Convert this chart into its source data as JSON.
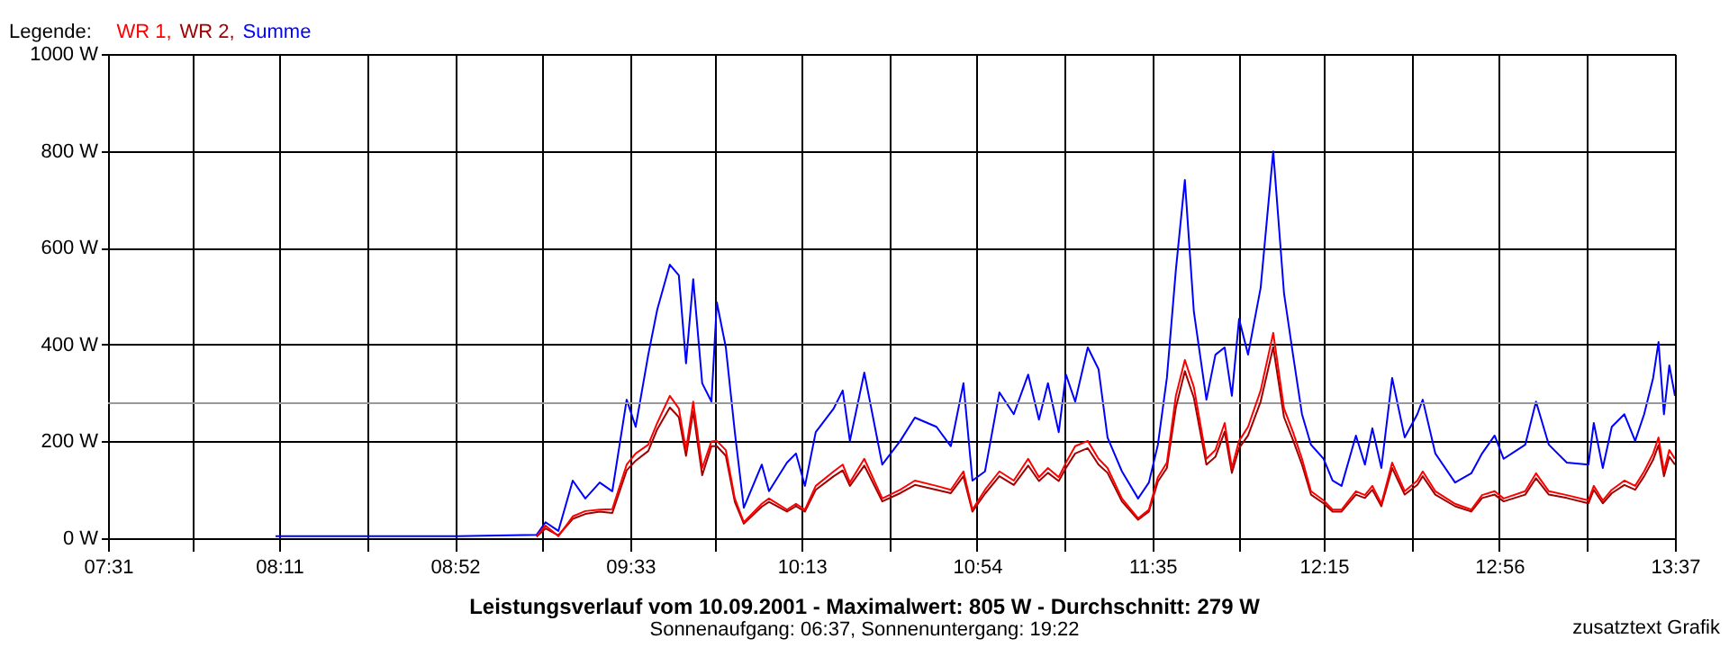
{
  "chart_data": {
    "type": "line",
    "title": "Leistungsverlauf vom 10.09.2001 - Maximalwert: 805 W - Durchschnitt: 279 W",
    "subtitle": "Sonnenaufgang: 06:37, Sonnenuntergang: 19:22",
    "legend_title": "Legende:",
    "legend": "top left",
    "grid": true,
    "marker": "none",
    "line_style": "solid",
    "annotations": [
      "zusatztext Grafik"
    ],
    "x": [
      8.169,
      8.498,
      8.849,
      9.185,
      9.22,
      9.27,
      9.326,
      9.375,
      9.431,
      9.48,
      9.536,
      9.571,
      9.62,
      9.655,
      9.704,
      9.739,
      9.767,
      9.795,
      9.83,
      9.866,
      9.887,
      9.922,
      9.957,
      9.992,
      10.062,
      10.09,
      10.16,
      10.195,
      10.23,
      10.272,
      10.342,
      10.377,
      10.405,
      10.461,
      10.531,
      10.601,
      10.658,
      10.742,
      10.798,
      10.847,
      10.882,
      10.931,
      10.987,
      11.043,
      11.099,
      11.141,
      11.176,
      11.218,
      11.246,
      11.282,
      11.331,
      11.373,
      11.408,
      11.464,
      11.527,
      11.569,
      11.604,
      11.639,
      11.674,
      11.709,
      11.744,
      11.793,
      11.828,
      11.864,
      11.892,
      11.92,
      11.955,
      12.004,
      12.053,
      12.095,
      12.13,
      12.165,
      12.2,
      12.249,
      12.284,
      12.319,
      12.375,
      12.41,
      12.439,
      12.474,
      12.516,
      12.565,
      12.614,
      12.635,
      12.684,
      12.761,
      12.824,
      12.866,
      12.915,
      12.95,
      13.034,
      13.076,
      13.126,
      13.196,
      13.28,
      13.301,
      13.336,
      13.371,
      13.42,
      13.462,
      13.497,
      13.532,
      13.553,
      13.574,
      13.595,
      13.617
    ],
    "xlim": [
      7.517,
      13.617
    ],
    "xticks": [
      {
        "value": 7.517,
        "label": "07:31"
      },
      {
        "value": 7.85,
        "label": null
      },
      {
        "value": 8.183,
        "label": "08:11"
      },
      {
        "value": 8.525,
        "label": null
      },
      {
        "value": 8.867,
        "label": "08:52"
      },
      {
        "value": 9.208,
        "label": null
      },
      {
        "value": 9.55,
        "label": "09:33"
      },
      {
        "value": 9.883,
        "label": null
      },
      {
        "value": 10.217,
        "label": "10:13"
      },
      {
        "value": 10.558,
        "label": null
      },
      {
        "value": 10.9,
        "label": "10:54"
      },
      {
        "value": 11.242,
        "label": null
      },
      {
        "value": 11.583,
        "label": "11:35"
      },
      {
        "value": 11.917,
        "label": null
      },
      {
        "value": 12.25,
        "label": "12:15"
      },
      {
        "value": 12.592,
        "label": null
      },
      {
        "value": 12.933,
        "label": "12:56"
      },
      {
        "value": 13.275,
        "label": null
      },
      {
        "value": 13.617,
        "label": "13:37"
      }
    ],
    "ylim": [
      0,
      1000
    ],
    "yticks": [
      {
        "value": 0,
        "label": "0 W"
      },
      {
        "value": 200,
        "label": "200 W"
      },
      {
        "value": 400,
        "label": "400 W"
      },
      {
        "value": 600,
        "label": "600 W"
      },
      {
        "value": 800,
        "label": "800 W"
      },
      {
        "value": 1000,
        "label": "1000 W"
      }
    ],
    "ref_lines": [
      {
        "axis": "y",
        "value": 279,
        "color": "#999999"
      }
    ],
    "series": [
      {
        "name": "WR 1,",
        "color": "#ff0000",
        "values": [
          null,
          null,
          null,
          4,
          26,
          4,
          45,
          56,
          59,
          60,
          152,
          175,
          193,
          238,
          294,
          268,
          182,
          282,
          145,
          200,
          201,
          182,
          82,
          33,
          71,
          82,
          59,
          71,
          59,
          108,
          138,
          152,
          115,
          164,
          82,
          100,
          119,
          108,
          100,
          138,
          59,
          100,
          138,
          119,
          164,
          126,
          145,
          126,
          156,
          190,
          201,
          164,
          145,
          82,
          41,
          59,
          126,
          156,
          294,
          368,
          312,
          164,
          182,
          238,
          145,
          201,
          230,
          305,
          424,
          268,
          219,
          164,
          97,
          78,
          59,
          59,
          97,
          89,
          108,
          71,
          156,
          97,
          119,
          138,
          97,
          71,
          59,
          89,
          97,
          82,
          97,
          134,
          97,
          89,
          78,
          108,
          78,
          100,
          119,
          108,
          138,
          175,
          208,
          138,
          182,
          164
        ]
      },
      {
        "name": "WR 2,",
        "color": "#a00000",
        "values": [
          null,
          null,
          null,
          3,
          20,
          6,
          40,
          50,
          55,
          52,
          140,
          160,
          180,
          225,
          270,
          250,
          170,
          262,
          130,
          190,
          190,
          170,
          75,
          30,
          65,
          75,
          55,
          66,
          55,
          100,
          128,
          140,
          108,
          150,
          76,
          93,
          110,
          100,
          93,
          128,
          55,
          92,
          128,
          110,
          150,
          118,
          135,
          118,
          145,
          175,
          186,
          152,
          135,
          76,
          38,
          55,
          117,
          145,
          270,
          345,
          290,
          152,
          168,
          220,
          135,
          186,
          212,
          282,
          395,
          250,
          203,
          152,
          90,
          72,
          55,
          55,
          90,
          83,
          100,
          66,
          145,
          90,
          110,
          128,
          90,
          66,
          55,
          83,
          90,
          76,
          90,
          124,
          90,
          83,
          72,
          100,
          72,
          93,
          110,
          100,
          128,
          162,
          192,
          128,
          168,
          152
        ]
      },
      {
        "name": "Summe",
        "color": "#0000ff",
        "values": [
          4,
          4,
          4,
          7,
          33,
          15,
          119,
          82,
          115,
          97,
          286,
          230,
          379,
          472,
          565,
          543,
          361,
          535,
          320,
          282,
          487,
          394,
          219,
          63,
          152,
          97,
          156,
          175,
          108,
          219,
          268,
          305,
          201,
          342,
          152,
          201,
          249,
          230,
          190,
          320,
          119,
          138,
          301,
          256,
          338,
          245,
          320,
          219,
          338,
          282,
          394,
          349,
          208,
          138,
          82,
          115,
          193,
          331,
          554,
          740,
          468,
          286,
          379,
          394,
          294,
          453,
          379,
          517,
          799,
          506,
          379,
          256,
          193,
          164,
          119,
          108,
          212,
          152,
          227,
          145,
          331,
          208,
          256,
          286,
          175,
          115,
          134,
          175,
          212,
          164,
          193,
          282,
          193,
          156,
          152,
          238,
          145,
          230,
          256,
          201,
          256,
          331,
          405,
          256,
          357,
          294
        ]
      }
    ]
  }
}
